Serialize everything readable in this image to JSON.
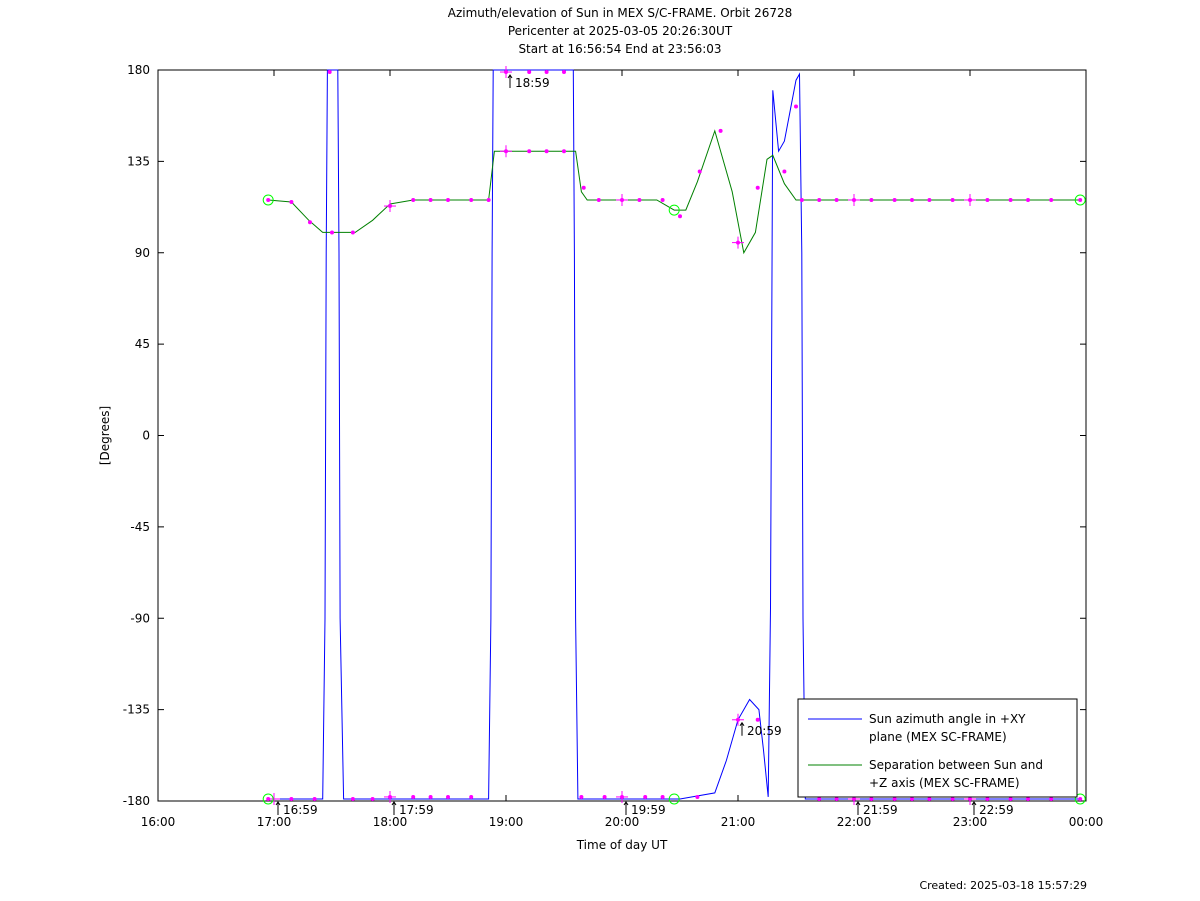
{
  "chart_data": {
    "type": "line",
    "title_lines": [
      "Azimuth/elevation of Sun in MEX S/C-FRAME.  Orbit 26728",
      "Pericenter at 2025-03-05 20:26:30UT",
      "Start at 16:56:54 End at 23:56:03"
    ],
    "xlabel": "Time of day UT",
    "ylabel": "[Degrees]",
    "x_unit": "hours of day UT",
    "xlim": [
      16,
      24
    ],
    "ylim": [
      -180,
      180
    ],
    "x_ticks": [
      {
        "value": 16,
        "label": "16:00"
      },
      {
        "value": 17,
        "label": "17:00"
      },
      {
        "value": 18,
        "label": "18:00"
      },
      {
        "value": 19,
        "label": "19:00"
      },
      {
        "value": 20,
        "label": "20:00"
      },
      {
        "value": 21,
        "label": "21:00"
      },
      {
        "value": 22,
        "label": "22:00"
      },
      {
        "value": 23,
        "label": "23:00"
      },
      {
        "value": 24,
        "label": "00:00"
      }
    ],
    "y_ticks": [
      {
        "value": 180,
        "label": "180"
      },
      {
        "value": 135,
        "label": "135"
      },
      {
        "value": 90,
        "label": "90"
      },
      {
        "value": 45,
        "label": "45"
      },
      {
        "value": 0,
        "label": "0"
      },
      {
        "value": -45,
        "label": "-45"
      },
      {
        "value": -90,
        "label": "-90"
      },
      {
        "value": -135,
        "label": "-135"
      },
      {
        "value": -180,
        "label": "-180"
      }
    ],
    "legend_position": "bottom-right",
    "series": [
      {
        "name": "Sun azimuth angle in +XY plane (MEX SC-FRAME)",
        "legend_lines": [
          "Sun azimuth angle in +XY",
          "plane (MEX SC-FRAME)"
        ],
        "color": "#0000ff",
        "x": [
          16.95,
          17.42,
          17.44,
          17.45,
          17.46,
          17.55,
          17.56,
          17.57,
          17.6,
          18.0,
          18.5,
          18.85,
          18.87,
          18.88,
          18.89,
          19.0,
          19.5,
          19.58,
          19.59,
          19.6,
          19.62,
          20.0,
          20.5,
          20.8,
          20.9,
          21.0,
          21.1,
          21.18,
          21.22,
          21.26,
          21.28,
          21.3,
          21.35,
          21.4,
          21.45,
          21.5,
          21.53,
          21.55,
          21.56,
          21.58,
          22.0,
          23.0,
          23.95
        ],
        "y": [
          -179,
          -179,
          -90,
          90,
          180,
          180,
          90,
          -90,
          -179,
          -179,
          -179,
          -179,
          -90,
          90,
          180,
          180,
          180,
          180,
          90,
          -90,
          -179,
          -179,
          -179,
          -176,
          -160,
          -140,
          -130,
          -135,
          -155,
          -178,
          -85,
          170,
          140,
          145,
          160,
          175,
          178,
          90,
          -90,
          -179,
          -179,
          -179,
          -179
        ]
      },
      {
        "name": "Separation between Sun and +Z axis (MEX SC-FRAME)",
        "legend_lines": [
          "Separation between Sun and",
          "+Z axis (MEX SC-FRAME)"
        ],
        "color": "#008000",
        "x": [
          16.95,
          17.15,
          17.3,
          17.42,
          17.5,
          17.7,
          17.85,
          18.0,
          18.2,
          18.5,
          18.85,
          18.9,
          19.0,
          19.6,
          19.65,
          19.7,
          20.0,
          20.3,
          20.45,
          20.55,
          20.65,
          20.8,
          20.95,
          21.05,
          21.15,
          21.25,
          21.3,
          21.4,
          21.5,
          21.6,
          22.0,
          23.0,
          23.95
        ],
        "y": [
          116,
          115,
          106,
          100,
          100,
          100,
          106,
          114,
          116,
          116,
          116,
          140,
          140,
          140,
          120,
          116,
          116,
          116,
          111,
          111,
          125,
          150,
          120,
          90,
          100,
          136,
          138,
          124,
          116,
          116,
          116,
          116,
          116
        ]
      }
    ],
    "markers": {
      "color": "#ff00ff",
      "points": [
        {
          "x": 16.95,
          "y": 116
        },
        {
          "x": 17.15,
          "y": 115
        },
        {
          "x": 17.31,
          "y": 105
        },
        {
          "x": 17.5,
          "y": 100
        },
        {
          "x": 17.68,
          "y": 100
        },
        {
          "x": 18.0,
          "y": 113
        },
        {
          "x": 18.2,
          "y": 116
        },
        {
          "x": 18.35,
          "y": 116
        },
        {
          "x": 18.5,
          "y": 116
        },
        {
          "x": 18.7,
          "y": 116
        },
        {
          "x": 18.85,
          "y": 116
        },
        {
          "x": 19.0,
          "y": 140
        },
        {
          "x": 19.2,
          "y": 140
        },
        {
          "x": 19.35,
          "y": 140
        },
        {
          "x": 19.5,
          "y": 140
        },
        {
          "x": 19.67,
          "y": 122
        },
        {
          "x": 19.8,
          "y": 116
        },
        {
          "x": 20.0,
          "y": 116
        },
        {
          "x": 20.15,
          "y": 116
        },
        {
          "x": 20.35,
          "y": 116
        },
        {
          "x": 20.5,
          "y": 108
        },
        {
          "x": 20.67,
          "y": 130
        },
        {
          "x": 20.85,
          "y": 150
        },
        {
          "x": 21.0,
          "y": 95
        },
        {
          "x": 21.17,
          "y": 122
        },
        {
          "x": 21.4,
          "y": 130
        },
        {
          "x": 21.55,
          "y": 116
        },
        {
          "x": 21.7,
          "y": 116
        },
        {
          "x": 21.85,
          "y": 116
        },
        {
          "x": 22.0,
          "y": 116
        },
        {
          "x": 22.15,
          "y": 116
        },
        {
          "x": 22.35,
          "y": 116
        },
        {
          "x": 22.5,
          "y": 116
        },
        {
          "x": 22.65,
          "y": 116
        },
        {
          "x": 22.85,
          "y": 116
        },
        {
          "x": 23.0,
          "y": 116
        },
        {
          "x": 23.15,
          "y": 116
        },
        {
          "x": 23.35,
          "y": 116
        },
        {
          "x": 23.5,
          "y": 116
        },
        {
          "x": 23.7,
          "y": 116
        },
        {
          "x": 23.95,
          "y": 116
        },
        {
          "x": 16.95,
          "y": -179
        },
        {
          "x": 17.15,
          "y": -179
        },
        {
          "x": 17.35,
          "y": -179
        },
        {
          "x": 17.68,
          "y": -179
        },
        {
          "x": 17.85,
          "y": -179
        },
        {
          "x": 18.0,
          "y": -178
        },
        {
          "x": 18.2,
          "y": -178
        },
        {
          "x": 18.35,
          "y": -178
        },
        {
          "x": 18.5,
          "y": -178
        },
        {
          "x": 18.7,
          "y": -178
        },
        {
          "x": 19.0,
          "y": 179
        },
        {
          "x": 19.2,
          "y": 179
        },
        {
          "x": 19.35,
          "y": 179
        },
        {
          "x": 19.5,
          "y": 179
        },
        {
          "x": 17.48,
          "y": 179
        },
        {
          "x": 19.65,
          "y": -178
        },
        {
          "x": 19.85,
          "y": -178
        },
        {
          "x": 20.0,
          "y": -178
        },
        {
          "x": 20.2,
          "y": -178
        },
        {
          "x": 20.35,
          "y": -178
        },
        {
          "x": 20.65,
          "y": -178
        },
        {
          "x": 21.0,
          "y": -140
        },
        {
          "x": 21.17,
          "y": -140
        },
        {
          "x": 21.5,
          "y": 162
        },
        {
          "x": 21.7,
          "y": -179
        },
        {
          "x": 21.85,
          "y": -179
        },
        {
          "x": 22.0,
          "y": -179
        },
        {
          "x": 22.15,
          "y": -179
        },
        {
          "x": 22.35,
          "y": -179
        },
        {
          "x": 22.5,
          "y": -179
        },
        {
          "x": 22.65,
          "y": -179
        },
        {
          "x": 22.85,
          "y": -179
        },
        {
          "x": 23.0,
          "y": -179
        },
        {
          "x": 23.15,
          "y": -179
        },
        {
          "x": 23.35,
          "y": -179
        },
        {
          "x": 23.5,
          "y": -179
        },
        {
          "x": 23.7,
          "y": -179
        },
        {
          "x": 23.95,
          "y": -179
        }
      ],
      "crosses": [
        {
          "x": 18.0,
          "y": 113
        },
        {
          "x": 19.0,
          "y": 140
        },
        {
          "x": 20.0,
          "y": 116
        },
        {
          "x": 21.0,
          "y": 95
        },
        {
          "x": 22.0,
          "y": 116
        },
        {
          "x": 23.0,
          "y": 116
        },
        {
          "x": 17.0,
          "y": -179
        },
        {
          "x": 18.0,
          "y": -178
        },
        {
          "x": 19.0,
          "y": 179
        },
        {
          "x": 20.0,
          "y": -178
        },
        {
          "x": 21.0,
          "y": -140
        },
        {
          "x": 22.0,
          "y": -179
        },
        {
          "x": 23.0,
          "y": -179
        }
      ]
    },
    "event_circles": {
      "color": "#00ff00",
      "points": [
        {
          "x": 16.95,
          "y": 116
        },
        {
          "x": 20.45,
          "y": 111
        },
        {
          "x": 23.95,
          "y": 116
        },
        {
          "x": 16.95,
          "y": -179
        },
        {
          "x": 20.45,
          "y": -179
        },
        {
          "x": 23.95,
          "y": -179
        }
      ]
    },
    "annotations": [
      {
        "x": 17.0,
        "y": -179,
        "text": "16:59"
      },
      {
        "x": 18.0,
        "y": -179,
        "text": "17:59"
      },
      {
        "x": 19.0,
        "y": 179,
        "text": "18:59"
      },
      {
        "x": 20.0,
        "y": -179,
        "text": "19:59"
      },
      {
        "x": 21.0,
        "y": -140,
        "text": "20:59"
      },
      {
        "x": 22.0,
        "y": -179,
        "text": "21:59"
      },
      {
        "x": 23.0,
        "y": -179,
        "text": "22:59"
      }
    ],
    "footer": "Created: 2025-03-18 15:57:29"
  }
}
